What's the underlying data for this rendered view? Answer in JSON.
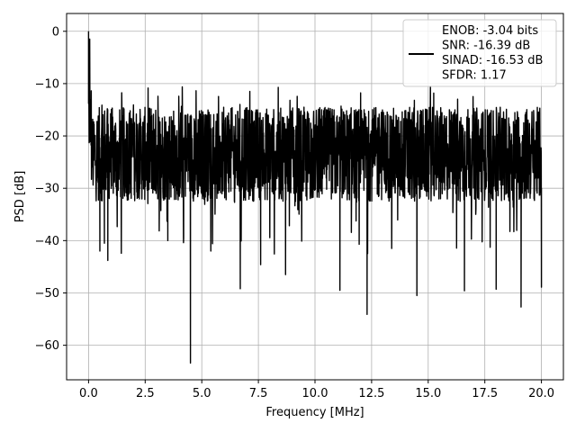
{
  "chart_data": {
    "type": "line",
    "title": "",
    "xlabel": "Frequency [MHz]",
    "ylabel": "PSD [dB]",
    "xlim": [
      -0.97,
      20.97
    ],
    "ylim": [
      -66.6,
      3.4
    ],
    "xticks": [
      0.0,
      2.5,
      5.0,
      7.5,
      10.0,
      12.5,
      15.0,
      17.5,
      20.0
    ],
    "xtick_labels": [
      "0.0",
      "2.5",
      "5.0",
      "7.5",
      "10.0",
      "12.5",
      "15.0",
      "17.5",
      "20.0"
    ],
    "yticks": [
      0,
      -10,
      -20,
      -30,
      -40,
      -50,
      -60
    ],
    "ytick_labels": [
      "0",
      "−10",
      "−20",
      "−30",
      "−40",
      "−50",
      "−60"
    ],
    "grid": true,
    "legend_position": "top-right",
    "series": [
      {
        "name": "ENOB: -3.04 bits\nSNR: -16.39 dB\nSINAD: -16.53 dB\nSFDR: 1.17",
        "color": "#000000",
        "description": "noisy PSD trace with floor around -20 to -30 dB",
        "envelope": {
          "start_value": 0,
          "upper_typical": -13,
          "lower_typical": -33
        },
        "notable_points": [
          {
            "x": 0.0,
            "y": 0.0
          },
          {
            "x": 0.05,
            "y": -1.5
          },
          {
            "x": 0.5,
            "y": -42.0
          },
          {
            "x": 0.7,
            "y": -40.5
          },
          {
            "x": 0.85,
            "y": -43.8
          },
          {
            "x": 3.5,
            "y": -40.0
          },
          {
            "x": 4.2,
            "y": -39.5
          },
          {
            "x": 4.5,
            "y": -63.4
          },
          {
            "x": 5.4,
            "y": -42.0
          },
          {
            "x": 6.7,
            "y": -49.2
          },
          {
            "x": 7.6,
            "y": -44.6
          },
          {
            "x": 8.7,
            "y": -46.5
          },
          {
            "x": 11.1,
            "y": -49.5
          },
          {
            "x": 12.3,
            "y": -54.1
          },
          {
            "x": 14.5,
            "y": -50.5
          },
          {
            "x": 16.6,
            "y": -49.6
          },
          {
            "x": 18.0,
            "y": -49.3
          },
          {
            "x": 19.1,
            "y": -52.7
          },
          {
            "x": 20.0,
            "y": -48.9
          }
        ]
      }
    ]
  }
}
